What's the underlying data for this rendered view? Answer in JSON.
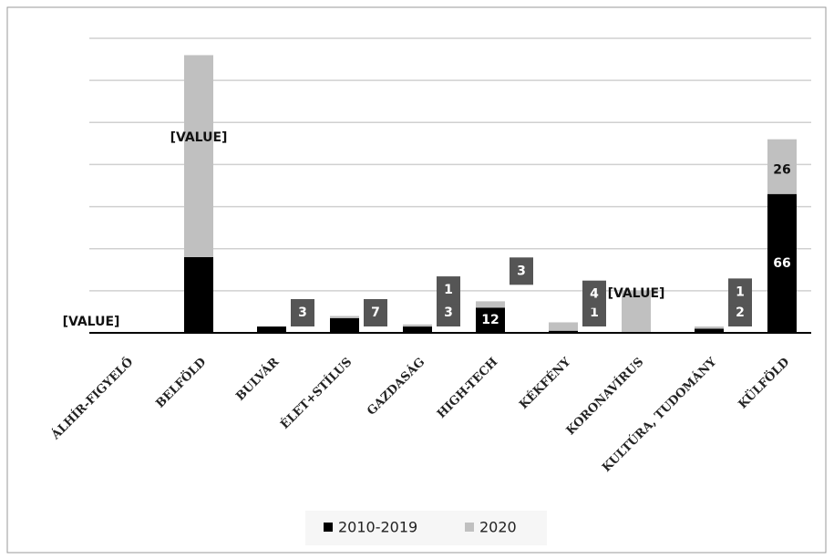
{
  "chart_data": {
    "type": "stacked_bar",
    "categories": [
      "ÁLHÍR-FIGYELŐ",
      "BELFÖLD",
      "BULVÁR",
      "ÉLET+STÍLUS",
      "GAZDASÁG",
      "HIGH-TECH",
      "KÉKFÉNY",
      "KORONAVÍRUS",
      "KULTÚRA, TUDOMÁNY",
      "KÜLFÖLD"
    ],
    "series": [
      {
        "name": "2010-2019",
        "color": "#000000",
        "values": [
          0,
          36,
          3,
          7,
          3,
          12,
          1,
          0,
          2,
          66
        ],
        "value_labels": [
          "[VALUE]",
          null,
          "3",
          "7",
          "3",
          "12",
          "1",
          null,
          "2",
          "66"
        ]
      },
      {
        "name": "2020",
        "color": "#c0c0c0",
        "values": [
          0,
          96,
          0,
          1,
          1,
          3,
          4,
          20,
          1,
          26
        ],
        "value_labels": [
          null,
          "[VALUE]",
          null,
          null,
          "1",
          "3",
          "4",
          "[VALUE]",
          "1",
          "26"
        ]
      }
    ],
    "ylim": [
      0,
      140
    ],
    "yticks": [
      0,
      20,
      40,
      60,
      80,
      100,
      120,
      140
    ],
    "grid": true,
    "legend": "bottom"
  }
}
